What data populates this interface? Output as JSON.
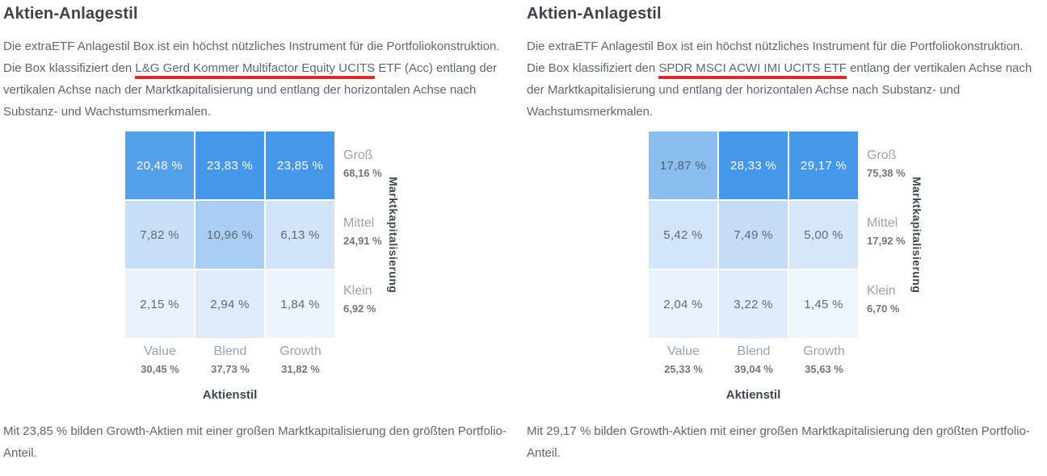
{
  "accent_colors": {
    "highlight_red": "#d92b2b",
    "cell_dark_blue": "#4597e9",
    "axis_label_dark": "#3c4853",
    "body_text_gray": "#5b6771"
  },
  "panels": [
    {
      "title": "Aktien-Anlagestil",
      "intro_before": "Die extraETF Anlagestil Box ist ein höchst nützliches Instrument für die Portfoliokonstruktion. Die Box klassifiziert den ",
      "intro_etf": "L&G Gerd Kommer Multifactor Equity UCITS",
      "intro_after": " ETF (Acc) entlang der vertikalen Achse nach der Marktkapitalisierung und entlang der horizontalen Achse nach Substanz- und Wachstumsmerkmalen.",
      "grid": {
        "xlabel": "Aktienstil",
        "ylabel": "Marktkapitalisierung",
        "cells": [
          {
            "label": "20,48 %",
            "bg": "#549fea",
            "fg": "#ffffff"
          },
          {
            "label": "23,83 %",
            "bg": "#4597e9",
            "fg": "#ffffff"
          },
          {
            "label": "23,85 %",
            "bg": "#4597e9",
            "fg": "#ffffff"
          },
          {
            "label": "7,82 %",
            "bg": "#c6def7",
            "fg": "#5f6b75"
          },
          {
            "label": "10,96 %",
            "bg": "#a9cdf3",
            "fg": "#5f6b75"
          },
          {
            "label": "6,13 %",
            "bg": "#d1e4f9",
            "fg": "#5f6b75"
          },
          {
            "label": "2,15 %",
            "bg": "#e9f2fc",
            "fg": "#5f6b75"
          },
          {
            "label": "2,94 %",
            "bg": "#e0ebfa",
            "fg": "#5f6b75"
          },
          {
            "label": "1,84 %",
            "bg": "#edf4fd",
            "fg": "#5f6b75"
          }
        ],
        "rows": [
          {
            "name": "Groß",
            "total": "68,16 %"
          },
          {
            "name": "Mittel",
            "total": "24,91 %"
          },
          {
            "name": "Klein",
            "total": "6,92 %"
          }
        ],
        "cols": [
          {
            "name": "Value",
            "total": "30,45 %"
          },
          {
            "name": "Blend",
            "total": "37,73 %"
          },
          {
            "name": "Growth",
            "total": "31,82 %"
          }
        ]
      },
      "summary": "Mit 23,85 % bilden Growth-Aktien mit einer großen Marktkapitalisierung den größten Portfolio-Anteil."
    },
    {
      "title": "Aktien-Anlagestil",
      "intro_before": "Die extraETF Anlagestil Box ist ein höchst nützliches Instrument für die Portfoliokonstruktion. Die Box klassifiziert den ",
      "intro_etf": "SPDR MSCI ACWI IMI UCITS ETF",
      "intro_after": " entlang der vertikalen Achse nach der Marktkapitalisierung und entlang der horizontalen Achse nach Substanz- und Wachstumsmerkmalen.",
      "grid": {
        "xlabel": "Aktienstil",
        "ylabel": "Marktkapitalisierung",
        "cells": [
          {
            "label": "17,87 %",
            "bg": "#8abdf0",
            "fg": "#56626c"
          },
          {
            "label": "28,33 %",
            "bg": "#4597e9",
            "fg": "#ffffff"
          },
          {
            "label": "29,17 %",
            "bg": "#4597e9",
            "fg": "#ffffff"
          },
          {
            "label": "5,42 %",
            "bg": "#d3e5f9",
            "fg": "#5f6b75"
          },
          {
            "label": "7,49 %",
            "bg": "#c5dcf7",
            "fg": "#5f6b75"
          },
          {
            "label": "5,00 %",
            "bg": "#d6e7fa",
            "fg": "#5f6b75"
          },
          {
            "label": "2,04 %",
            "bg": "#e9f2fc",
            "fg": "#5f6b75"
          },
          {
            "label": "3,22 %",
            "bg": "#e1ecfb",
            "fg": "#5f6b75"
          },
          {
            "label": "1,45 %",
            "bg": "#eef5fd",
            "fg": "#5f6b75"
          }
        ],
        "rows": [
          {
            "name": "Groß",
            "total": "75,38 %"
          },
          {
            "name": "Mittel",
            "total": "17,92 %"
          },
          {
            "name": "Klein",
            "total": "6,70 %"
          }
        ],
        "cols": [
          {
            "name": "Value",
            "total": "25,33 %"
          },
          {
            "name": "Blend",
            "total": "39,04 %"
          },
          {
            "name": "Growth",
            "total": "35,63 %"
          }
        ]
      },
      "summary": "Mit 29,17 % bilden Growth-Aktien mit einer großen Marktkapitalisierung den größten Portfolio-Anteil."
    }
  ],
  "chart_data": [
    {
      "type": "heatmap",
      "title": "Aktien-Anlagestil",
      "etf": "L&G Gerd Kommer Multifactor Equity UCITS ETF (Acc)",
      "x_categories": [
        "Value",
        "Blend",
        "Growth"
      ],
      "y_categories": [
        "Groß",
        "Mittel",
        "Klein"
      ],
      "xlabel": "Aktienstil",
      "ylabel": "Marktkapitalisierung",
      "values": [
        [
          20.48,
          23.83,
          23.85
        ],
        [
          7.82,
          10.96,
          6.13
        ],
        [
          2.15,
          2.94,
          1.84
        ]
      ],
      "row_totals": [
        68.16,
        24.91,
        6.92
      ],
      "col_totals": [
        30.45,
        37.73,
        31.82
      ],
      "unit": "%",
      "legend_position": "none",
      "grid": false
    },
    {
      "type": "heatmap",
      "title": "Aktien-Anlagestil",
      "etf": "SPDR MSCI ACWI IMI UCITS ETF",
      "x_categories": [
        "Value",
        "Blend",
        "Growth"
      ],
      "y_categories": [
        "Groß",
        "Mittel",
        "Klein"
      ],
      "xlabel": "Aktienstil",
      "ylabel": "Marktkapitalisierung",
      "values": [
        [
          17.87,
          28.33,
          29.17
        ],
        [
          5.42,
          7.49,
          5.0
        ],
        [
          2.04,
          3.22,
          1.45
        ]
      ],
      "row_totals": [
        75.38,
        17.92,
        6.7
      ],
      "col_totals": [
        25.33,
        39.04,
        35.63
      ],
      "unit": "%",
      "legend_position": "none",
      "grid": false
    }
  ]
}
